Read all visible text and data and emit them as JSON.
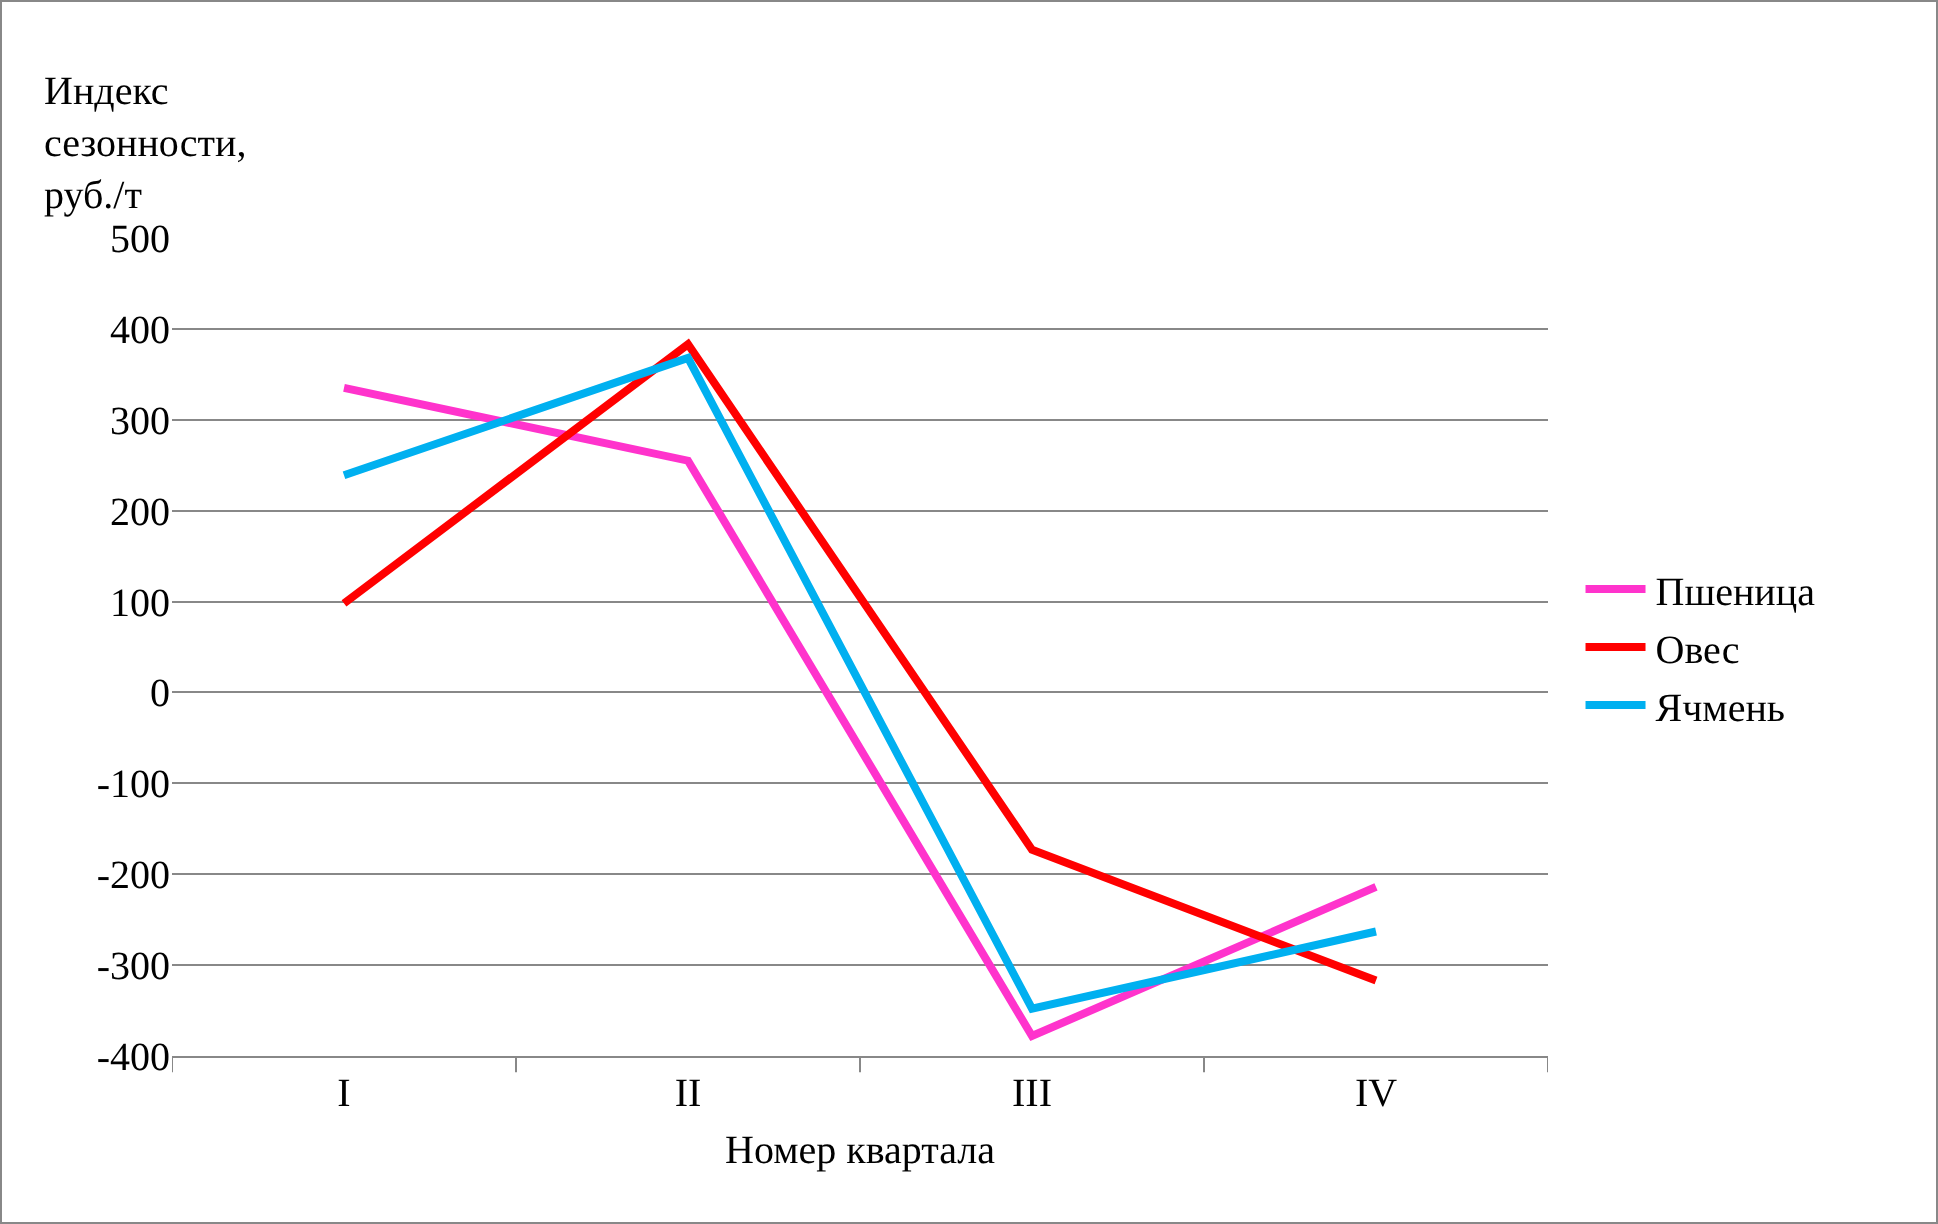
{
  "chart_data": {
    "type": "line",
    "ylabel": "Индекс\nсезонности,\nруб./т",
    "xlabel": "Номер квартала",
    "categories": [
      "I",
      "II",
      "III",
      "IV"
    ],
    "series": [
      {
        "name": "Пшеница",
        "color": "#ff33cc",
        "values": [
          335,
          255,
          -378,
          -214
        ]
      },
      {
        "name": "Овес",
        "color": "#ff0000",
        "values": [
          98,
          383,
          -173,
          -317
        ]
      },
      {
        "name": "Ячмень",
        "color": "#00b0f0",
        "values": [
          239,
          368,
          -348,
          -263
        ]
      }
    ],
    "ylim": [
      -400,
      500
    ],
    "yticks": [
      -400,
      -300,
      -200,
      -100,
      0,
      100,
      200,
      300,
      400,
      500
    ],
    "grid": "y",
    "legend": "right",
    "marker": "none",
    "line_style": "solid"
  }
}
